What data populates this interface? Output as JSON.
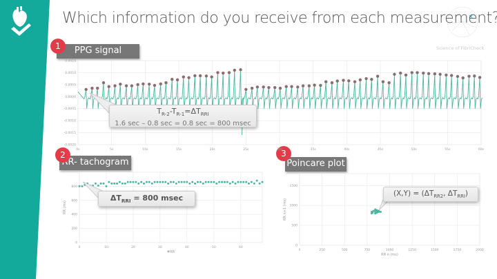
{
  "title": "Which information do you receive from each measurement?",
  "watermark": "Science of FibriCheck",
  "colors": {
    "band": "#13aa9b",
    "badge": "#e43b4b",
    "series": "#4db6a0",
    "peak": "#8a6d6d",
    "label_bg": "#777777"
  },
  "icons": [
    "heart-check-icon",
    "network-logo-icon"
  ],
  "sections": [
    {
      "number": "1",
      "label": "PPG signal"
    },
    {
      "number": "2",
      "label": "RR- tachogram"
    },
    {
      "number": "3",
      "label": "Poincare plot"
    }
  ],
  "callouts": {
    "ppg": {
      "t1": "T",
      "s1": "R-2",
      "dash": "-T",
      "s2": "R-1",
      "eq": "=ΔT",
      "s3": "RRI",
      "line2": "1.6 sec – 0.8 sec = 0.8 sec = 800 msec"
    },
    "rr": {
      "a": "ΔT",
      "s": "RRI",
      "b": " = 800 msec"
    },
    "poincare": {
      "a": "(X,Y) = (ΔT",
      "s1": "RR2",
      "b": ", ΔT",
      "s2": "RRI",
      "c": ")"
    }
  },
  "chart_data": [
    {
      "type": "line",
      "name": "PPG signal",
      "xlim": [
        0,
        60
      ],
      "ylim": [
        -0.002,
        0.0015
      ],
      "grid": true,
      "xticks": [
        "0s",
        "5s",
        "10s",
        "15s",
        "20s",
        "25s",
        "30s",
        "35s",
        "40s",
        "45s",
        "50s",
        "55s",
        "60s"
      ],
      "yticks": [
        "0.0015",
        "0.0010",
        "0.0005",
        "0.0000",
        "-0.0005",
        "-0.0010",
        "-0.0015",
        "-0.0020"
      ],
      "peaks_t": [
        1.2,
        2.1,
        2.9,
        3.8,
        4.6,
        5.5,
        6.3,
        7.2,
        8.0,
        8.9,
        9.7,
        10.6,
        11.4,
        12.3,
        13.1,
        14.0,
        14.8,
        15.7,
        16.5,
        17.4,
        18.2,
        19.1,
        19.9,
        20.8,
        21.6,
        22.5,
        23.3,
        24.2,
        25.0,
        25.9,
        26.7,
        27.6,
        28.4,
        29.3,
        30.1,
        31.0,
        31.8,
        32.7,
        33.5,
        34.4,
        35.2,
        36.1,
        36.9,
        37.8,
        38.6,
        39.5,
        40.3,
        41.2,
        42.0,
        42.9,
        43.7,
        44.6,
        45.4,
        46.3,
        47.1,
        48.0,
        48.8,
        49.7,
        50.5,
        51.4,
        52.2,
        53.1,
        53.9,
        54.8,
        55.6,
        56.5,
        57.3,
        58.2,
        59.0,
        59.8
      ],
      "peaks_y": [
        0.0003,
        0.00035,
        0.00035,
        0.00058,
        0.00042,
        0.00045,
        0.00052,
        0.00045,
        0.00045,
        0.0005,
        0.00053,
        0.00052,
        0.00047,
        0.00053,
        0.00058,
        0.00072,
        0.0007,
        0.00082,
        0.00079,
        0.00087,
        0.00087,
        0.00086,
        0.00082,
        0.001,
        0.00098,
        0.001,
        0.0011,
        0.00112,
        0.0003,
        0.00035,
        0.0004,
        0.0004,
        0.00038,
        0.00038,
        0.00035,
        0.00042,
        0.00042,
        0.0004,
        0.00045,
        0.00045,
        0.00048,
        0.00047,
        0.00062,
        0.00058,
        0.00065,
        0.00068,
        0.00066,
        0.00062,
        0.0007,
        0.00075,
        0.00072,
        0.00085,
        0.00062,
        0.00058,
        0.00093,
        0.00098,
        0.0009,
        0.001,
        0.001,
        0.00098,
        0.00096,
        0.00095,
        0.00093,
        0.0009,
        0.00088,
        0.00084,
        0.00078,
        0.00085,
        0.00086,
        0.0008
      ]
    },
    {
      "type": "scatter",
      "name": "RR- tachogram",
      "xlabel": "#RR",
      "ylabel": "RR (ms)",
      "xlim": [
        0,
        68
      ],
      "ylim": [
        0,
        1000
      ],
      "grid": true,
      "xticks": [
        "0",
        "10",
        "20",
        "30",
        "40",
        "50",
        "60"
      ],
      "yticks": [
        "0",
        "200",
        "400",
        "600",
        "800"
      ],
      "values": [
        800,
        800,
        820,
        840,
        810,
        810,
        840,
        810,
        840,
        840,
        800,
        860,
        840,
        840,
        840,
        860,
        840,
        840,
        860,
        860,
        860,
        860,
        840,
        860,
        840,
        860,
        860,
        840,
        860,
        860,
        860,
        860,
        860,
        840,
        860,
        860,
        840,
        860,
        860,
        860,
        860,
        840,
        860,
        840,
        860,
        860,
        840,
        860,
        860,
        860,
        860,
        840,
        860,
        860,
        860,
        860,
        840,
        860,
        840,
        860,
        860,
        860,
        860,
        840,
        860,
        840,
        880,
        840,
        860
      ]
    },
    {
      "type": "scatter",
      "name": "Poincare plot",
      "xlabel": "RR n (ms)",
      "ylabel": "RR n+1 (ms)",
      "xlim": [
        0,
        2000
      ],
      "ylim": [
        0,
        1800
      ],
      "grid": true,
      "xticks": [
        "0",
        "250",
        "500",
        "750",
        "1000",
        "1250",
        "1500",
        "1750",
        "2000"
      ],
      "yticks": [
        "0",
        "500",
        "1000",
        "1500"
      ],
      "points": [
        [
          800,
          800
        ],
        [
          800,
          840
        ],
        [
          810,
          820
        ],
        [
          820,
          860
        ],
        [
          840,
          800
        ],
        [
          840,
          840
        ],
        [
          840,
          880
        ],
        [
          840,
          900
        ],
        [
          860,
          820
        ],
        [
          860,
          860
        ],
        [
          860,
          880
        ],
        [
          880,
          840
        ],
        [
          880,
          860
        ],
        [
          900,
          840
        ]
      ]
    }
  ]
}
